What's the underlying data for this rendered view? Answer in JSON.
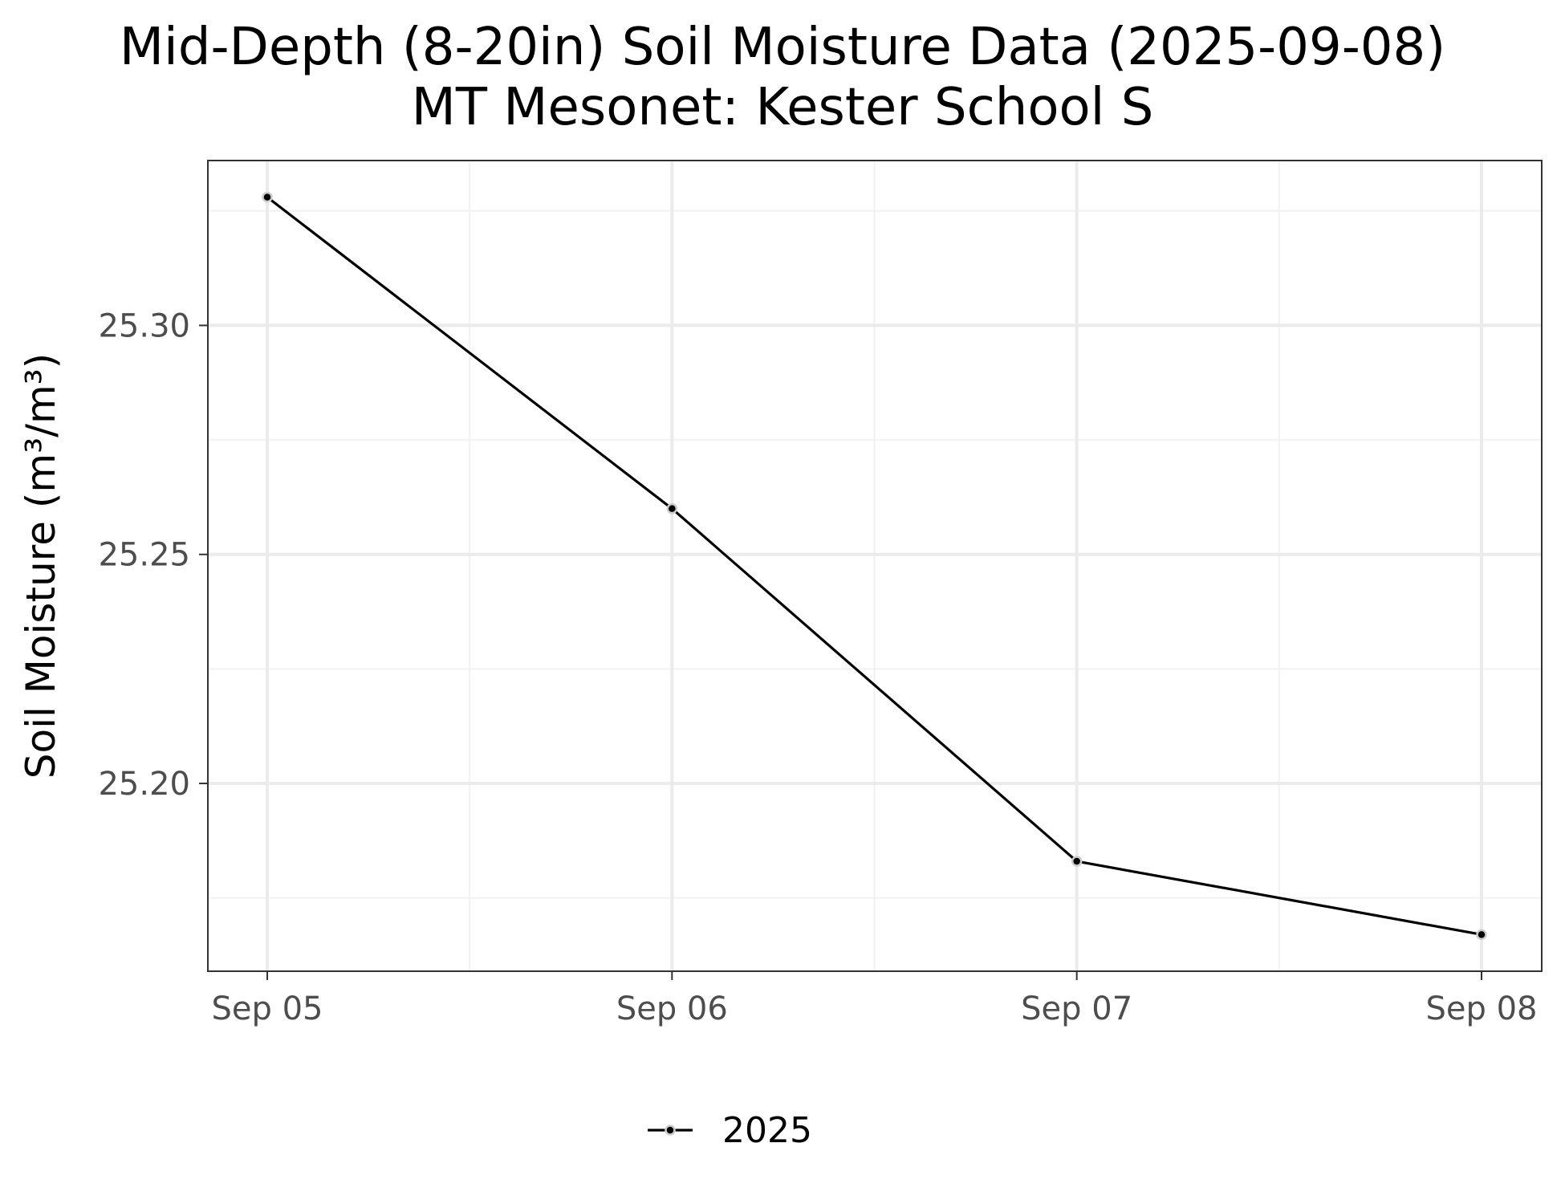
{
  "chart_data": {
    "type": "line",
    "title": "Mid-Depth (8-20in) Soil Moisture Data (2025-09-08)",
    "subtitle": "MT Mesonet: Kester School S",
    "xlabel": "",
    "ylabel": "Soil Moisture (m³/m³)",
    "categories": [
      "Sep 05",
      "Sep 06",
      "Sep 07",
      "Sep 08"
    ],
    "x": [
      "2025-09-05",
      "2025-09-06",
      "2025-09-07",
      "2025-09-08"
    ],
    "x_minor": [
      "2025-09-05 12:00",
      "2025-09-06 12:00",
      "2025-09-07 12:00"
    ],
    "series": [
      {
        "name": "2025",
        "values": [
          25.328,
          25.26,
          25.183,
          25.167
        ],
        "color": "#000000",
        "point_color": "#000000",
        "point_stroke": "#cccccc"
      }
    ],
    "yticks": [
      25.2,
      25.25,
      25.3
    ],
    "ytick_labels": [
      "25.20",
      "25.25",
      "25.30"
    ],
    "yminor": [
      25.175,
      25.225,
      25.275,
      25.325
    ],
    "ylim": [
      25.159,
      25.336
    ],
    "grid": true,
    "legend_position": "bottom",
    "colors": {
      "panel_border": "#333333",
      "grid_major": "#ebebeb",
      "grid_minor": "#f2f2f2",
      "tick_text": "#4d4d4d"
    }
  }
}
